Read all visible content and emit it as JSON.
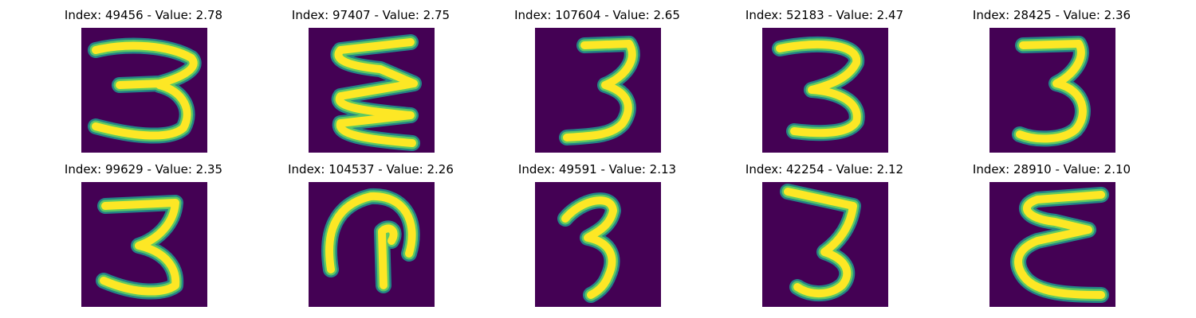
{
  "colormap": {
    "background": "#440154",
    "edge": "#21918c",
    "mid": "#5ec962",
    "core": "#fde725"
  },
  "panels": [
    {
      "title": "Index: 49456 - Value: 2.78",
      "digit_icon": "digit-3-wide-strokes"
    },
    {
      "title": "Index: 97407 - Value: 2.75",
      "digit_icon": "digit-3-zigzag"
    },
    {
      "title": "Index: 107604 - Value: 2.65",
      "digit_icon": "digit-3-bold"
    },
    {
      "title": "Index: 52183 - Value: 2.47",
      "digit_icon": "digit-3-loop"
    },
    {
      "title": "Index: 28425 - Value: 2.36",
      "digit_icon": "digit-3-thick"
    },
    {
      "title": "Index: 99629 - Value: 2.35",
      "digit_icon": "digit-3-plain"
    },
    {
      "title": "Index: 104537 - Value: 2.26",
      "digit_icon": "digit-arch-hook"
    },
    {
      "title": "Index: 49591 - Value: 2.13",
      "digit_icon": "digit-3-narrow"
    },
    {
      "title": "Index: 42254 - Value: 2.12",
      "digit_icon": "digit-3-slanted"
    },
    {
      "title": "Index: 28910 - Value: 2.10",
      "digit_icon": "digit-3-reversed-e"
    }
  ]
}
